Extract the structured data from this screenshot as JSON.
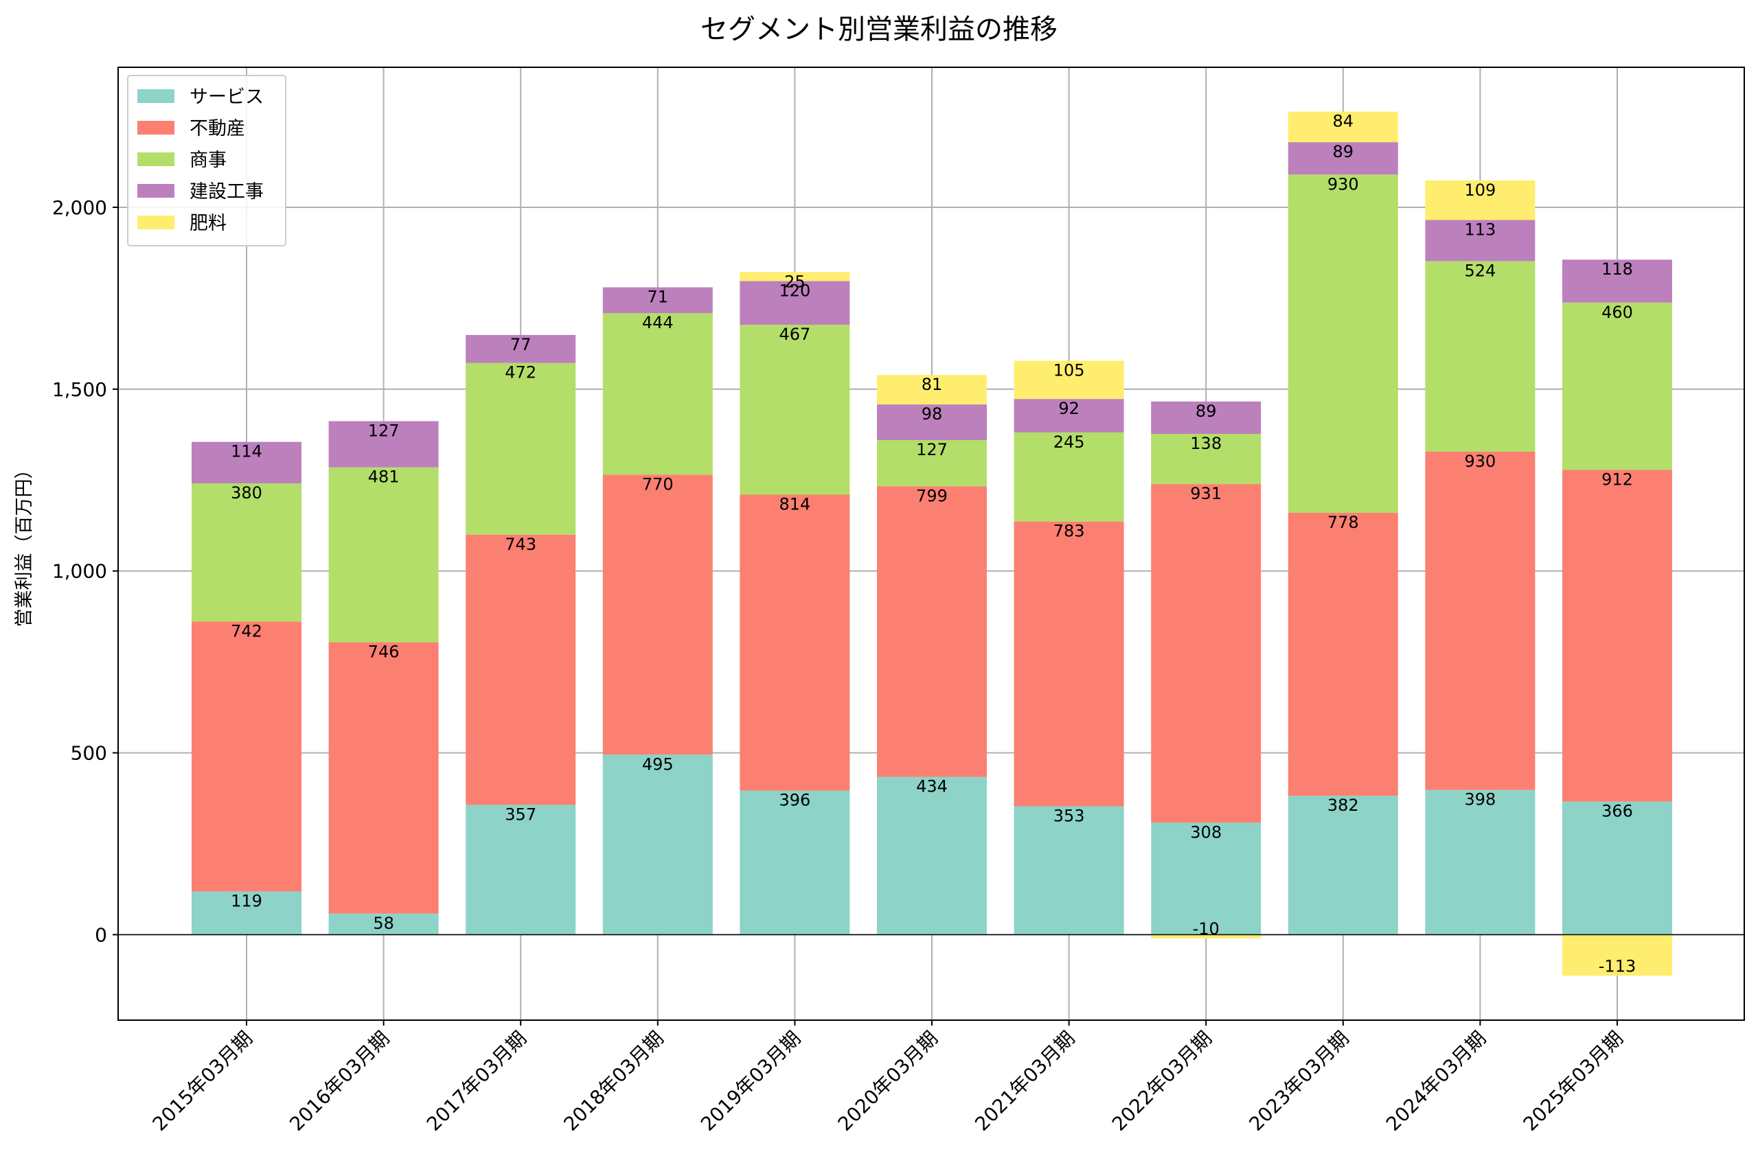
{
  "chart_data": {
    "type": "bar",
    "stacked": true,
    "title": "セグメント別営業利益の推移",
    "xlabel": "",
    "ylabel": "営業利益（百万円）",
    "ylim": [
      -235,
      2385
    ],
    "yticks": [
      0,
      500,
      1000,
      1500,
      2000
    ],
    "ytick_labels": [
      "0",
      "500",
      "1,000",
      "1,500",
      "2,000"
    ],
    "grid": true,
    "legend_position": "top-left",
    "categories": [
      "2015年03月期",
      "2016年03月期",
      "2017年03月期",
      "2018年03月期",
      "2019年03月期",
      "2020年03月期",
      "2021年03月期",
      "2022年03月期",
      "2023年03月期",
      "2024年03月期",
      "2025年03月期"
    ],
    "series": [
      {
        "name": "サービス",
        "color": "#8dd3c7",
        "values": [
          119,
          58,
          357,
          495,
          396,
          434,
          353,
          308,
          382,
          398,
          366
        ]
      },
      {
        "name": "不動産",
        "color": "#fb8072",
        "values": [
          742,
          746,
          743,
          770,
          814,
          799,
          783,
          931,
          778,
          930,
          912
        ]
      },
      {
        "name": "商事",
        "color": "#b3de69",
        "values": [
          380,
          481,
          472,
          444,
          467,
          127,
          245,
          138,
          930,
          524,
          460
        ]
      },
      {
        "name": "建設工事",
        "color": "#bc80bd",
        "values": [
          114,
          127,
          77,
          71,
          120,
          98,
          92,
          89,
          89,
          113,
          118
        ]
      },
      {
        "name": "肥料",
        "color": "#ffed6f",
        "values": [
          null,
          null,
          null,
          null,
          25,
          81,
          105,
          -10,
          84,
          109,
          -113
        ]
      }
    ]
  }
}
